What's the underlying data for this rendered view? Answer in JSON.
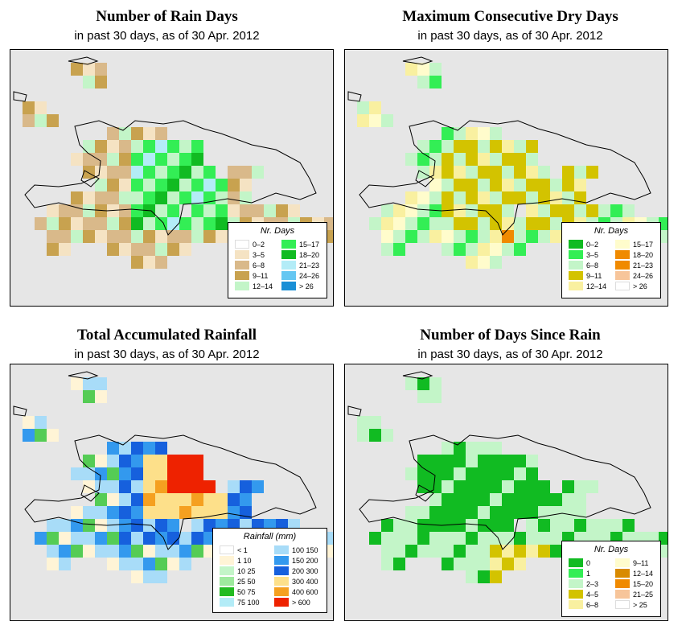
{
  "colors": {
    "sea": "#e6e6e6",
    "d_white": "#ffffff",
    "d_beige": "#f5e3c3",
    "d_tan": "#d9b98a",
    "d_brown": "#c8a24f",
    "d_pale_green": "#c3f5c8",
    "d_bright_green": "#33ee55",
    "d_green": "#11bb22",
    "d_light_cyan": "#b3ecf7",
    "d_sky": "#66c7f2",
    "d_blue": "#1a8fd6",
    "d_olive": "#d3c300",
    "d_pale_yellow": "#f9f0a0",
    "d_cream": "#fffccc",
    "d_orange": "#f08a00",
    "d_peach": "#f7c59a",
    "r_cream": "#fff4d6",
    "r_light_green": "#9eea9e",
    "r_green": "#55cc55",
    "r_mid_green": "#22bb22",
    "r_light_blue": "#a8dcf8",
    "r_blue": "#3399ee",
    "r_dark_blue": "#1660dd",
    "r_yellow": "#fde08a",
    "r_orange": "#f5a020",
    "r_red": "#ee2200"
  },
  "panels": [
    {
      "title": "Number of Rain Days",
      "subtitle": "in past 30 days, as of  30 Apr. 2012",
      "legend": {
        "title": "Nr. Days",
        "items": [
          {
            "label": "0–2",
            "color": "#ffffff"
          },
          {
            "label": "3–5",
            "color": "#f5e3c3"
          },
          {
            "label": "6–8",
            "color": "#d9b98a"
          },
          {
            "label": "9–11",
            "color": "#c8a24f"
          },
          {
            "label": "12–14",
            "color": "#c3f5c8"
          },
          {
            "label": "15–17",
            "color": "#33ee55"
          },
          {
            "label": "18–20",
            "color": "#11bb22"
          },
          {
            "label": "21–23",
            "color": "#b3ecf7"
          },
          {
            "label": "24–26",
            "color": "#66c7f2"
          },
          {
            "label": "> 26",
            "color": "#1a8fd6"
          }
        ]
      }
    },
    {
      "title": "Maximum Consecutive Dry Days",
      "subtitle": "in past 30 days, as of  30 Apr. 2012",
      "legend": {
        "title": "Nr. Days",
        "items": [
          {
            "label": "0–2",
            "color": "#11bb22"
          },
          {
            "label": "3–5",
            "color": "#33ee55"
          },
          {
            "label": "6–8",
            "color": "#c3f5c8"
          },
          {
            "label": "9–11",
            "color": "#d3c300"
          },
          {
            "label": "12–14",
            "color": "#f9f0a0"
          },
          {
            "label": "15–17",
            "color": "#fffccc"
          },
          {
            "label": "18–20",
            "color": "#f08a00"
          },
          {
            "label": "21–23",
            "color": "#f08a00"
          },
          {
            "label": "24–26",
            "color": "#f7c59a"
          },
          {
            "label": "> 26",
            "color": "#ffffff"
          }
        ]
      }
    },
    {
      "title": "Total Accumulated Rainfall",
      "subtitle": "in past 30 days, as of  30 Apr. 2012",
      "legend": {
        "title": "Rainfall (mm)",
        "items": [
          {
            "label": "< 1",
            "color": "#ffffff"
          },
          {
            "label": "1   10",
            "color": "#fff4d6"
          },
          {
            "label": "10   25",
            "color": "#c3f5c8"
          },
          {
            "label": "25   50",
            "color": "#9eea9e"
          },
          {
            "label": "50   75",
            "color": "#22bb22"
          },
          {
            "label": "75   100",
            "color": "#b3ecf7"
          },
          {
            "label": "100   150",
            "color": "#a8dcf8"
          },
          {
            "label": "150   200",
            "color": "#3399ee"
          },
          {
            "label": "200   300",
            "color": "#1660dd"
          },
          {
            "label": "300   400",
            "color": "#fde08a"
          },
          {
            "label": "400   600",
            "color": "#f5a020"
          },
          {
            "label": "> 600",
            "color": "#ee2200"
          }
        ]
      }
    },
    {
      "title": "Number of Days Since Rain",
      "subtitle": "in past 30 days, as of  30 Apr. 2012",
      "legend": {
        "title": "Nr. Days",
        "items": [
          {
            "label": "0",
            "color": "#11bb22"
          },
          {
            "label": "1",
            "color": "#33ee55"
          },
          {
            "label": "2–3",
            "color": "#c3f5c8"
          },
          {
            "label": "4–5",
            "color": "#d3c300"
          },
          {
            "label": "6–8",
            "color": "#f9f0a0"
          },
          {
            "label": "9–11",
            "color": "#fffccc"
          },
          {
            "label": "12–14",
            "color": "#d88a00"
          },
          {
            "label": "15–20",
            "color": "#f08a00"
          },
          {
            "label": "21–25",
            "color": "#f7c59a"
          },
          {
            "label": "> 25",
            "color": "#ffffff"
          }
        ]
      }
    }
  ]
}
